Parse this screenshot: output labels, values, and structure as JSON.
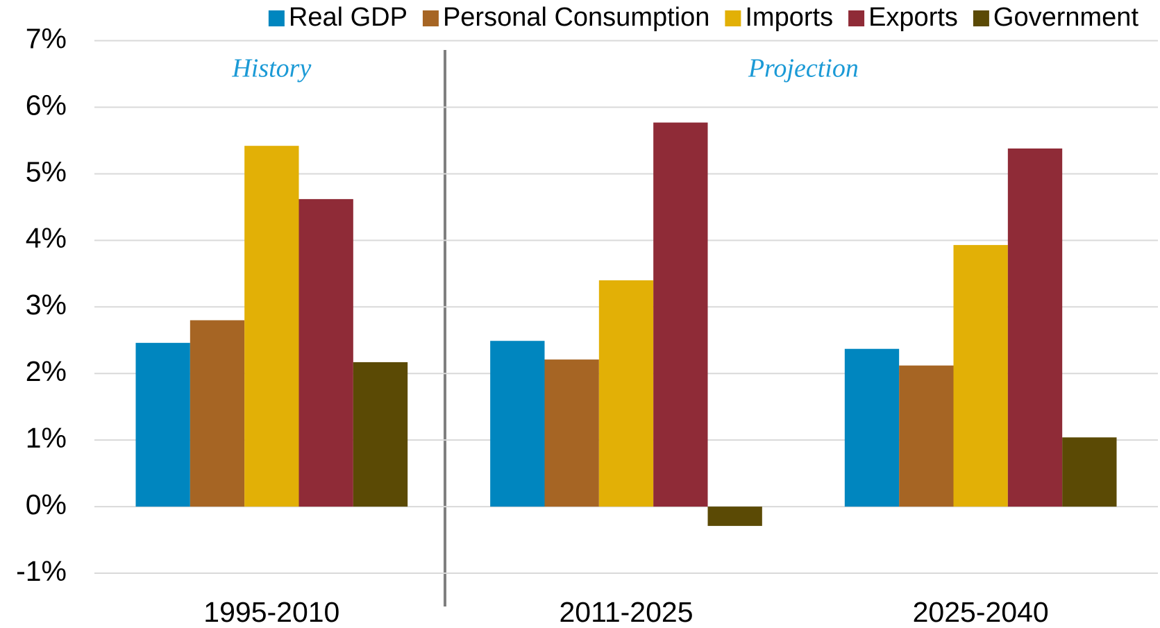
{
  "chart_data": {
    "type": "bar",
    "annotations": [
      "History",
      "Projection"
    ],
    "categories": [
      "1995-2010",
      "2011-2025",
      "2025-2040"
    ],
    "series": [
      {
        "name": "Real GDP",
        "color": "#0086bf",
        "values": [
          2.46,
          2.49,
          2.37
        ]
      },
      {
        "name": "Personal Consumption",
        "color": "#a66524",
        "values": [
          2.8,
          2.21,
          2.12
        ]
      },
      {
        "name": "Imports",
        "color": "#e2b006",
        "values": [
          5.42,
          3.4,
          3.93
        ]
      },
      {
        "name": "Exports",
        "color": "#8f2b37",
        "values": [
          4.62,
          5.77,
          5.38
        ]
      },
      {
        "name": "Government",
        "color": "#5b4a05",
        "values": [
          2.17,
          -0.29,
          1.04
        ]
      }
    ],
    "ylim": [
      -1,
      7
    ],
    "yticks": [
      {
        "value": -1,
        "label": "-1%"
      },
      {
        "value": 0,
        "label": "0%"
      },
      {
        "value": 1,
        "label": "1%"
      },
      {
        "value": 2,
        "label": "2%"
      },
      {
        "value": 3,
        "label": "3%"
      },
      {
        "value": 4,
        "label": "4%"
      },
      {
        "value": 5,
        "label": "5%"
      },
      {
        "value": 6,
        "label": "6%"
      },
      {
        "value": 7,
        "label": "7%"
      }
    ],
    "grid": true,
    "legend": "top"
  }
}
